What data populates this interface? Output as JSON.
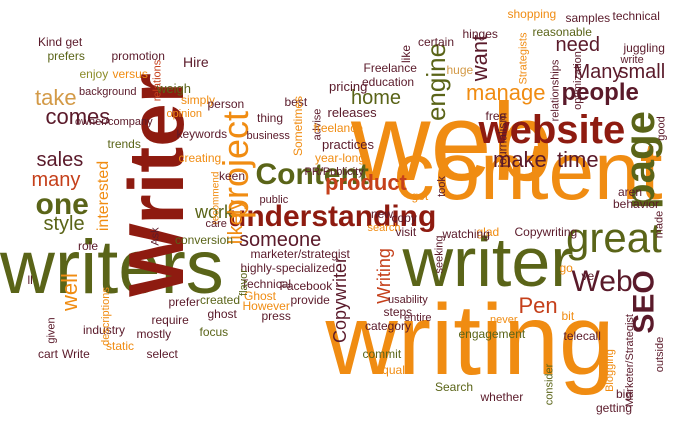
{
  "palette": {
    "background": "#ffffff",
    "orange": "#f08c12",
    "dark_red": "#8e1b10",
    "olive": "#5a6418",
    "maroon": "#5a1a2a",
    "light_olive": "#8c8c28",
    "tan": "#d39a47",
    "red_orange": "#c5401b"
  },
  "words": [
    {
      "text": "web"
    },
    {
      "text": "content"
    },
    {
      "text": "writing"
    },
    {
      "text": "writers"
    },
    {
      "text": "Writer"
    },
    {
      "text": "writer"
    },
    {
      "text": "website"
    },
    {
      "text": "understanding"
    },
    {
      "text": "Content"
    },
    {
      "text": "great"
    },
    {
      "text": "page"
    },
    {
      "text": "project"
    },
    {
      "text": "SEO"
    },
    {
      "text": "Web"
    },
    {
      "text": "product"
    },
    {
      "text": "people"
    },
    {
      "text": "one"
    },
    {
      "text": "manage"
    },
    {
      "text": "engine"
    },
    {
      "text": "make"
    },
    {
      "text": "time"
    },
    {
      "text": "comes"
    },
    {
      "text": "Many"
    },
    {
      "text": "small"
    },
    {
      "text": "need"
    },
    {
      "text": "home"
    },
    {
      "text": "take"
    },
    {
      "text": "sales"
    },
    {
      "text": "many"
    },
    {
      "text": "style"
    },
    {
      "text": "someone"
    },
    {
      "text": "work"
    },
    {
      "text": "interested"
    },
    {
      "text": "likely"
    },
    {
      "text": "want"
    },
    {
      "text": "well"
    },
    {
      "text": "Pen"
    },
    {
      "text": "Writing"
    },
    {
      "text": "Copywriter"
    },
    {
      "text": "prefers"
    },
    {
      "text": "background"
    },
    {
      "text": "Kind"
    },
    {
      "text": "get"
    },
    {
      "text": "promotion"
    },
    {
      "text": "Hire"
    },
    {
      "text": "enjoy"
    },
    {
      "text": "versus"
    },
    {
      "text": "relations"
    },
    {
      "text": "weigh"
    },
    {
      "text": "simply"
    },
    {
      "text": "person"
    },
    {
      "text": "opinion"
    },
    {
      "text": "keywords"
    },
    {
      "text": "owner/company"
    },
    {
      "text": "trends"
    },
    {
      "text": "pricing"
    },
    {
      "text": "education"
    },
    {
      "text": "Freelance"
    },
    {
      "text": "like"
    },
    {
      "text": "certain"
    },
    {
      "text": "hinges"
    },
    {
      "text": "shopping"
    },
    {
      "text": "samples"
    },
    {
      "text": "technical"
    },
    {
      "text": "reasonable"
    },
    {
      "text": "juggling"
    },
    {
      "text": "write"
    },
    {
      "text": "optimization"
    },
    {
      "text": "relationships"
    },
    {
      "text": "Strategists"
    },
    {
      "text": "huge"
    },
    {
      "text": "free"
    },
    {
      "text": "journalism"
    },
    {
      "text": "good"
    },
    {
      "text": "aren"
    },
    {
      "text": "behavior"
    },
    {
      "text": "made"
    },
    {
      "text": "releases"
    },
    {
      "text": "thing"
    },
    {
      "text": "business"
    },
    {
      "text": "best"
    },
    {
      "text": "Sometimes"
    },
    {
      "text": "advise"
    },
    {
      "text": "freelance"
    },
    {
      "text": "practices"
    },
    {
      "text": "year-long"
    },
    {
      "text": "PR/Publicity"
    },
    {
      "text": "public"
    },
    {
      "text": "creating"
    },
    {
      "text": "recommend"
    },
    {
      "text": "keen"
    },
    {
      "text": "care"
    },
    {
      "text": "Ask"
    },
    {
      "text": "marketer/strategist"
    },
    {
      "text": "highly-specialized"
    },
    {
      "text": "conversion"
    },
    {
      "text": "Technical"
    },
    {
      "text": "Facebook"
    },
    {
      "text": "Ghost"
    },
    {
      "text": "flavor"
    },
    {
      "text": "However"
    },
    {
      "text": "press"
    },
    {
      "text": "provide"
    },
    {
      "text": "created"
    },
    {
      "text": "ghost"
    },
    {
      "text": "focus"
    },
    {
      "text": "prefer"
    },
    {
      "text": "require"
    },
    {
      "text": "mostly"
    },
    {
      "text": "select"
    },
    {
      "text": "industry"
    },
    {
      "text": "static"
    },
    {
      "text": "descriptions"
    },
    {
      "text": "role"
    },
    {
      "text": "given"
    },
    {
      "text": "cart"
    },
    {
      "text": "Write"
    },
    {
      "text": "ll"
    },
    {
      "text": "search"
    },
    {
      "text": "new"
    },
    {
      "text": "visit"
    },
    {
      "text": "copy"
    },
    {
      "text": "got"
    },
    {
      "text": "took"
    },
    {
      "text": "seeking"
    },
    {
      "text": "glad"
    },
    {
      "text": "watching"
    },
    {
      "text": "Copywriting"
    },
    {
      "text": "steps"
    },
    {
      "text": "usability"
    },
    {
      "text": "category"
    },
    {
      "text": "entire"
    },
    {
      "text": "engagement"
    },
    {
      "text": "never"
    },
    {
      "text": "telecall"
    },
    {
      "text": "bit"
    },
    {
      "text": "go"
    },
    {
      "text": "ve"
    },
    {
      "text": "commit"
    },
    {
      "text": "equal"
    },
    {
      "text": "Search"
    },
    {
      "text": "whether"
    },
    {
      "text": "consider"
    },
    {
      "text": "Blogging"
    },
    {
      "text": "Marketer/Strategist"
    },
    {
      "text": "big"
    },
    {
      "text": "outside"
    },
    {
      "text": "getting"
    }
  ]
}
